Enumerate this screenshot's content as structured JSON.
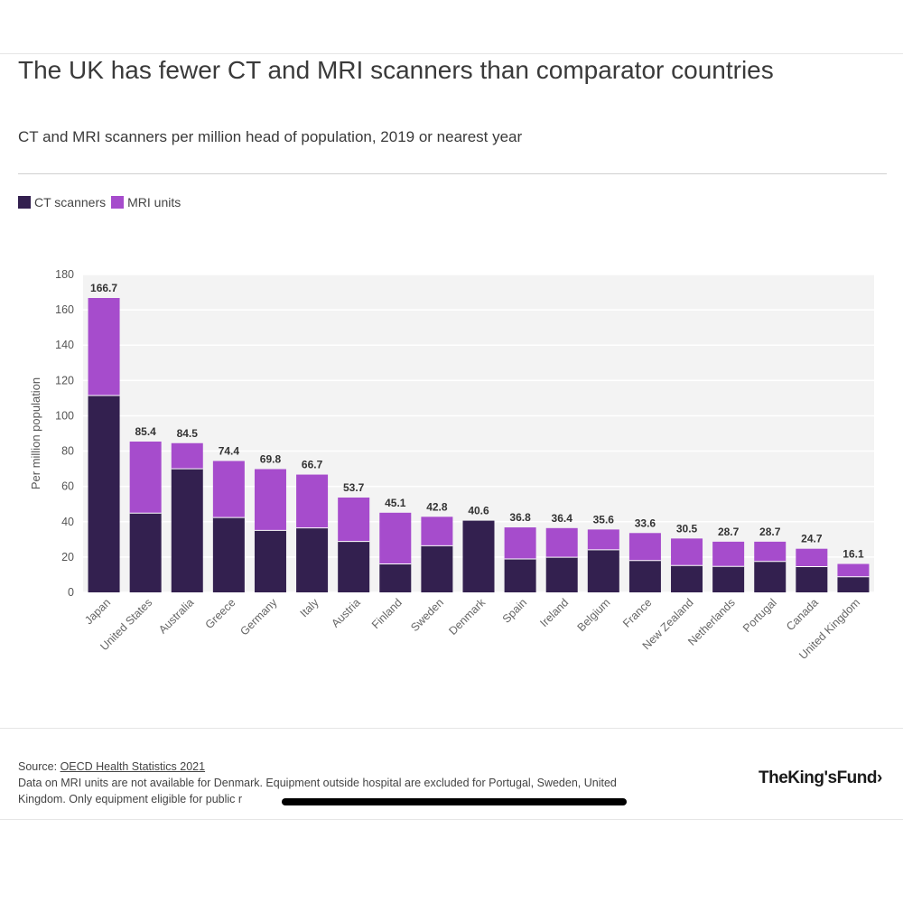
{
  "title": "The UK has fewer CT and MRI scanners than comparator countries",
  "subtitle": "CT and MRI scanners per million head of population, 2019 or nearest year",
  "legend": {
    "ct_label": "CT scanners",
    "mri_label": "MRI units"
  },
  "colors": {
    "ct": "#33204f",
    "mri": "#a64ccc",
    "plot_bg": "#f3f3f3",
    "grid": "#ffffff"
  },
  "chart_data": {
    "type": "bar",
    "stacked": true,
    "categories": [
      "Japan",
      "United States",
      "Australia",
      "Greece",
      "Germany",
      "Italy",
      "Austria",
      "Finland",
      "Sweden",
      "Denmark",
      "Spain",
      "Ireland",
      "Belgium",
      "France",
      "New Zealand",
      "Netherlands",
      "Portugal",
      "Canada",
      "United Kingdom"
    ],
    "series": [
      {
        "name": "CT scanners",
        "values": [
          111.5,
          44.9,
          70.0,
          42.4,
          35.1,
          36.5,
          28.8,
          16.1,
          26.4,
          40.6,
          18.9,
          19.9,
          24.1,
          18.0,
          15.2,
          14.7,
          17.5,
          14.6,
          8.8
        ]
      },
      {
        "name": "MRI units",
        "values": [
          55.2,
          40.5,
          14.5,
          32.0,
          34.7,
          30.2,
          24.9,
          29.0,
          16.4,
          0,
          17.9,
          16.5,
          11.5,
          15.6,
          15.3,
          14.0,
          11.2,
          10.1,
          7.3
        ]
      }
    ],
    "totals": [
      166.7,
      85.4,
      84.5,
      74.4,
      69.8,
      66.7,
      53.7,
      45.1,
      42.8,
      40.6,
      36.8,
      36.4,
      35.6,
      33.6,
      30.5,
      28.7,
      28.7,
      24.7,
      16.1
    ],
    "total_labels": [
      "166.7",
      "85.4",
      "84.5",
      "74.4",
      "69.8",
      "66.7",
      "53.7",
      "45.1",
      "42.8",
      "40.6",
      "36.8",
      "36.4",
      "35.6",
      "33.6",
      "30.5",
      "28.7",
      "28.7",
      "24.7",
      "16.1"
    ],
    "ylabel": "Per million population",
    "xlabel": "",
    "ylim": [
      0,
      180
    ],
    "yticks": [
      0,
      20,
      40,
      60,
      80,
      100,
      120,
      140,
      160,
      180
    ],
    "grid": true,
    "legend_position": "top-left"
  },
  "footer": {
    "source_prefix": "Source: ",
    "source_link": "OECD Health Statistics 2021",
    "note_line1": "Data on MRI units are not available for Denmark. Equipment outside hospital are excluded for Portugal, Sweden, United",
    "note_line2": "Kingdom. Only equipment eligible for public r"
  },
  "brand": "TheKing'sFund›"
}
